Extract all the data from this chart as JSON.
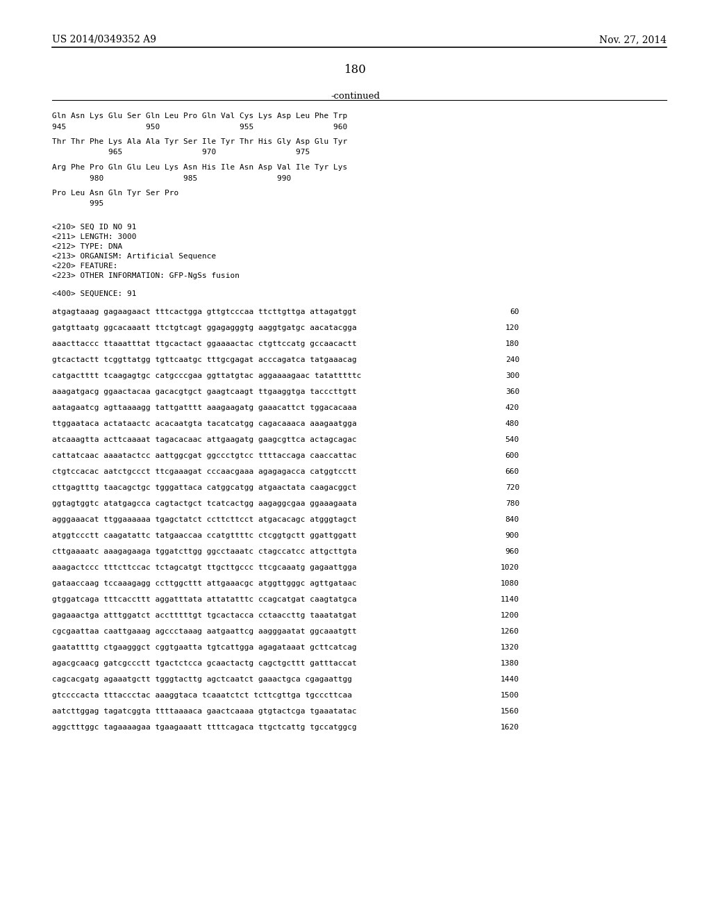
{
  "left_header": "US 2014/0349352 A9",
  "right_header": "Nov. 27, 2014",
  "page_number": "180",
  "continued_label": "-continued",
  "background_color": "#ffffff",
  "text_color": "#000000",
  "content": [
    {
      "type": "aa_seq",
      "line1": "Gln Asn Lys Glu Ser Gln Leu Pro Gln Val Cys Lys Asp Leu Phe Trp",
      "line2": "945                 950                 955                 960"
    },
    {
      "type": "aa_seq",
      "line1": "Thr Thr Phe Lys Ala Ala Tyr Ser Ile Tyr Thr His Gly Asp Glu Tyr",
      "line2": "            965                 970                 975"
    },
    {
      "type": "aa_seq",
      "line1": "Arg Phe Pro Gln Glu Leu Lys Asn His Ile Asn Asp Val Ile Tyr Lys",
      "line2": "        980                 985                 990"
    },
    {
      "type": "aa_seq",
      "line1": "Pro Leu Asn Gln Tyr Ser Pro",
      "line2": "        995"
    },
    {
      "type": "blank"
    },
    {
      "type": "meta",
      "text": "<210> SEQ ID NO 91"
    },
    {
      "type": "meta",
      "text": "<211> LENGTH: 3000"
    },
    {
      "type": "meta",
      "text": "<212> TYPE: DNA"
    },
    {
      "type": "meta",
      "text": "<213> ORGANISM: Artificial Sequence"
    },
    {
      "type": "meta",
      "text": "<220> FEATURE:"
    },
    {
      "type": "meta",
      "text": "<223> OTHER INFORMATION: GFP-NgSs fusion"
    },
    {
      "type": "blank"
    },
    {
      "type": "meta",
      "text": "<400> SEQUENCE: 91"
    },
    {
      "type": "blank"
    },
    {
      "type": "dna_seq",
      "seq": "atgagtaaag gagaagaact tttcactgga gttgtcccaa ttcttgttga attagatggt",
      "num": "60"
    },
    {
      "type": "blank_small"
    },
    {
      "type": "dna_seq",
      "seq": "gatgttaatg ggcacaaatt ttctgtcagt ggagagggtg aaggtgatgc aacatacgga",
      "num": "120"
    },
    {
      "type": "blank_small"
    },
    {
      "type": "dna_seq",
      "seq": "aaacttaccc ttaaatttat ttgcactact ggaaaactac ctgttccatg gccaacactt",
      "num": "180"
    },
    {
      "type": "blank_small"
    },
    {
      "type": "dna_seq",
      "seq": "gtcactactt tcggttatgg tgttcaatgc tttgcgagat acccagatca tatgaaacag",
      "num": "240"
    },
    {
      "type": "blank_small"
    },
    {
      "type": "dna_seq",
      "seq": "catgactttt tcaagagtgc catgcccgaa ggttatgtac aggaaaagaac tatatttttc",
      "num": "300"
    },
    {
      "type": "blank_small"
    },
    {
      "type": "dna_seq",
      "seq": "aaagatgacg ggaactacaa gacacgtgct gaagtcaagt ttgaaggtga tacccttgtt",
      "num": "360"
    },
    {
      "type": "blank_small"
    },
    {
      "type": "dna_seq",
      "seq": "aatagaatcg agttaaaagg tattgatttt aaagaagatg gaaacattct tggacacaaa",
      "num": "420"
    },
    {
      "type": "blank_small"
    },
    {
      "type": "dna_seq",
      "seq": "ttggaataca actataactc acacaatgta tacatcatgg cagacaaaca aaagaatgga",
      "num": "480"
    },
    {
      "type": "blank_small"
    },
    {
      "type": "dna_seq",
      "seq": "atcaaagtta acttcaaaat tagacacaac attgaagatg gaagcgttca actagcagac",
      "num": "540"
    },
    {
      "type": "blank_small"
    },
    {
      "type": "dna_seq",
      "seq": "cattatcaac aaaatactcc aattggcgat ggccctgtcc ttttaccaga caaccattac",
      "num": "600"
    },
    {
      "type": "blank_small"
    },
    {
      "type": "dna_seq",
      "seq": "ctgtccacac aatctgccct ttcgaaagat cccaacgaaa agagagacca catggtcctt",
      "num": "660"
    },
    {
      "type": "blank_small"
    },
    {
      "type": "dna_seq",
      "seq": "cttgagtttg taacagctgc tgggattaca catggcatgg atgaactata caagacggct",
      "num": "720"
    },
    {
      "type": "blank_small"
    },
    {
      "type": "dna_seq",
      "seq": "ggtagtggtc atatgagcca cagtactgct tcatcactgg aagaggcgaa ggaaagaata",
      "num": "780"
    },
    {
      "type": "blank_small"
    },
    {
      "type": "dna_seq",
      "seq": "agggaaacat ttggaaaaaa tgagctatct ccttcttcct atgacacagc atgggtagct",
      "num": "840"
    },
    {
      "type": "blank_small"
    },
    {
      "type": "dna_seq",
      "seq": "atggtccctt caagatattc tatgaaccaa ccatgttttc ctcggtgctt ggattggatt",
      "num": "900"
    },
    {
      "type": "blank_small"
    },
    {
      "type": "dna_seq",
      "seq": "cttgaaaatc aaagagaaga tggatcttgg ggcctaaatc ctagccatcc attgcttgta",
      "num": "960"
    },
    {
      "type": "blank_small"
    },
    {
      "type": "dna_seq",
      "seq": "aaagactccc tttcttccac tctagcatgt ttgcttgccc ttcgcaaatg gagaattgga",
      "num": "1020"
    },
    {
      "type": "blank_small"
    },
    {
      "type": "dna_seq",
      "seq": "gataaccaag tccaaagagg ccttggcttt attgaaacgc atggttgggc agttgataac",
      "num": "1080"
    },
    {
      "type": "blank_small"
    },
    {
      "type": "dna_seq",
      "seq": "gtggatcaga tttcaccttt aggatttata attatatttc ccagcatgat caagtatgca",
      "num": "1140"
    },
    {
      "type": "blank_small"
    },
    {
      "type": "dna_seq",
      "seq": "gagaaactga atttggatct acctttttgt tgcactacca cctaaccttg taaatatgat",
      "num": "1200"
    },
    {
      "type": "blank_small"
    },
    {
      "type": "dna_seq",
      "seq": "cgcgaattaa caattgaaag agccctaaag aatgaattcg aagggaatat ggcaaatgtt",
      "num": "1260"
    },
    {
      "type": "blank_small"
    },
    {
      "type": "dna_seq",
      "seq": "gaatattttg ctgaagggct cggtgaatta tgtcattgga agagataaat gcttcatcag",
      "num": "1320"
    },
    {
      "type": "blank_small"
    },
    {
      "type": "dna_seq",
      "seq": "agacgcaacg gatcgccctt tgactctcca gcaactactg cagctgcttt gatttaccat",
      "num": "1380"
    },
    {
      "type": "blank_small"
    },
    {
      "type": "dna_seq",
      "seq": "cagcacgatg agaaatgctt tgggtacttg agctcaatct gaaactgca cgagaattgg",
      "num": "1440"
    },
    {
      "type": "blank_small"
    },
    {
      "type": "dna_seq",
      "seq": "gtccccacta tttaccctac aaaggtaca tcaaatctct tcttcgttga tgcccttcaa",
      "num": "1500"
    },
    {
      "type": "blank_small"
    },
    {
      "type": "dna_seq",
      "seq": "aatcttggag tagatcggta ttttaaaaca gaactcaaaa gtgtactcga tgaaatatac",
      "num": "1560"
    },
    {
      "type": "blank_small"
    },
    {
      "type": "dna_seq",
      "seq": "aggctttggc tagaaaagaa tgaagaaatt ttttcagaca ttgctcattg tgccatggcg",
      "num": "1620"
    }
  ]
}
